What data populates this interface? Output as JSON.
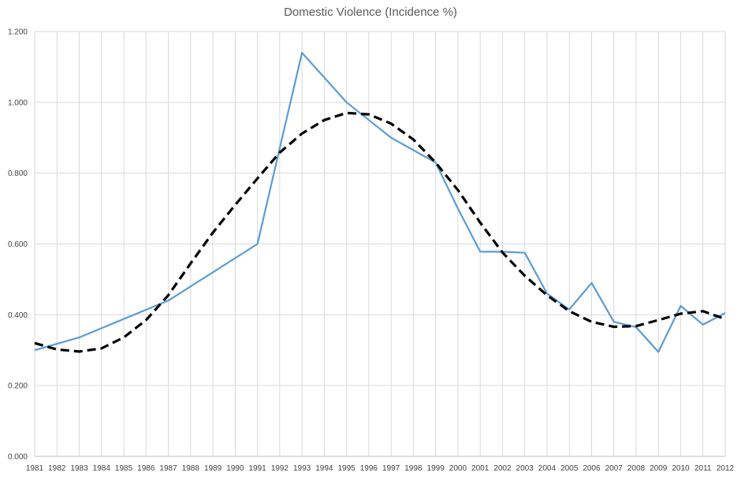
{
  "chart_data": {
    "type": "line",
    "title": "Domestic Violence (Incidence %)",
    "xlabel": "",
    "ylabel": "",
    "ylim": [
      0,
      1.2
    ],
    "yticks": [
      "0.000",
      "0.200",
      "0.400",
      "0.600",
      "0.800",
      "1.000",
      "1.200"
    ],
    "x": [
      "1981",
      "1982",
      "1983",
      "1984",
      "1985",
      "1986",
      "1987",
      "1988",
      "1989",
      "1990",
      "1991",
      "1992",
      "1993",
      "1994",
      "1995",
      "1996",
      "1997",
      "1998",
      "1999",
      "2000",
      "2001",
      "2002",
      "2003",
      "2004",
      "2005",
      "2006",
      "2007",
      "2008",
      "2009",
      "2010",
      "2011",
      "2012"
    ],
    "grid": "vertical and horizontal",
    "legend": "none",
    "series": [
      {
        "style": "solid",
        "color": "#5b9bd5",
        "values": [
          0.3,
          0.318,
          0.336,
          0.362,
          0.388,
          0.414,
          0.44,
          0.48,
          0.52,
          0.56,
          0.6,
          0.87,
          1.14,
          1.07,
          1.0,
          0.95,
          0.9,
          0.865,
          0.83,
          0.7,
          0.578,
          0.578,
          0.575,
          0.46,
          0.415,
          0.49,
          0.38,
          0.365,
          0.295,
          0.425,
          0.372,
          0.405
        ]
      },
      {
        "style": "dashed",
        "color": "#000000",
        "values": [
          0.32,
          0.302,
          0.296,
          0.305,
          0.336,
          0.385,
          0.455,
          0.545,
          0.632,
          0.71,
          0.785,
          0.858,
          0.912,
          0.95,
          0.97,
          0.966,
          0.94,
          0.895,
          0.83,
          0.752,
          0.66,
          0.576,
          0.51,
          0.455,
          0.41,
          0.38,
          0.366,
          0.368,
          0.385,
          0.403,
          0.41,
          0.388
        ]
      }
    ]
  }
}
